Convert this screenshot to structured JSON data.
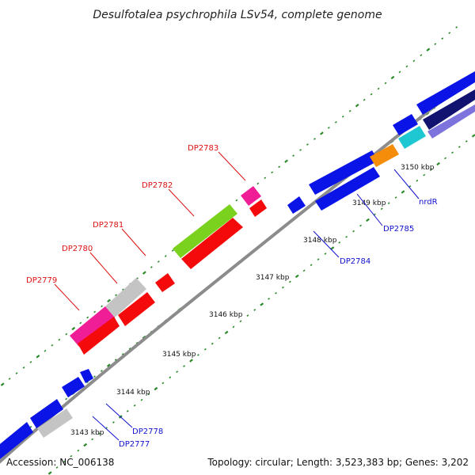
{
  "title": "Desulfotalea psychrophila LSv54, complete genome",
  "footer": {
    "accession": "Accession: NC_006138",
    "summary": "Topology: circular; Length: 3,523,383 bp; Genes: 3,202"
  },
  "ticks": [
    "3143 kbp",
    "3144 kbp",
    "3145 kbp",
    "3146 kbp",
    "3147 kbp",
    "3148 kbp",
    "3149 kbp",
    "3150 kbp"
  ],
  "labels": {
    "upper": [
      "DP2779",
      "DP2780",
      "DP2781",
      "DP2782",
      "DP2783"
    ],
    "lower": [
      "DP2777",
      "DP2778",
      "DP2784",
      "DP2785",
      "nrdR"
    ]
  },
  "colors": {
    "backbone": "#8c8c8c",
    "upper_label": "#dd1111",
    "lower_label": "#1111cc",
    "blue": "#0a14e6",
    "red": "#f40a0a",
    "pink": "#f01e96",
    "grey": "#c4c4c4",
    "green": "#7ad21e",
    "cyan": "#1ec8d2",
    "orange": "#f58c0a",
    "navy": "#121270",
    "lavender": "#7c74dc",
    "dots": "#2a8a2a"
  }
}
